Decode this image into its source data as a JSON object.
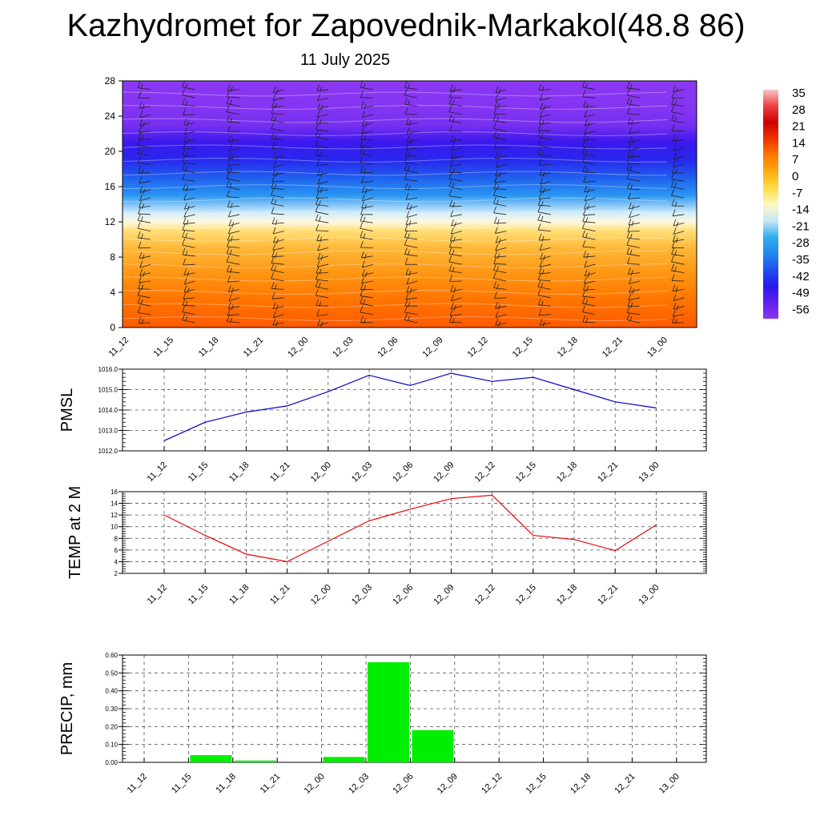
{
  "title": "Kazhydromet for Zapovednik-Markakol(48.8 86)",
  "subtitle": "11 July 2025",
  "chart_data": [
    {
      "type": "heatmap",
      "name": "upper-air temperature cross-section",
      "y_ticks": [
        "0",
        "4",
        "8",
        "12",
        "16",
        "20",
        "24",
        "28"
      ],
      "ylim": [
        0,
        28
      ],
      "x_ticks": [
        "11_12",
        "11_15",
        "11_18",
        "11_21",
        "12_00",
        "12_03",
        "12_06",
        "12_09",
        "12_12",
        "12_15",
        "12_18",
        "12_21",
        "13_00"
      ],
      "colorbar_labels": [
        "35",
        "28",
        "21",
        "14",
        "7",
        "0",
        "-7",
        "-14",
        "-21",
        "-28",
        "-35",
        "-42",
        "-49",
        "-56"
      ],
      "colorbar_stops": [
        "#f7c8c8",
        "#ee4040",
        "#cc0000",
        "#ee3300",
        "#ff7700",
        "#ffaa10",
        "#ffdd44",
        "#fff8c0",
        "#c8e8f8",
        "#30b0ee",
        "#2288ee",
        "#2050ee",
        "#2818ee",
        "#6020ee",
        "#8c34f2"
      ],
      "field_stops": [
        "#ff5a00",
        "#ff7400",
        "#ff9412",
        "#ffb838",
        "#ffdf78",
        "#fff8e0",
        "#d2ecfa",
        "#2a96f2",
        "#2060ee",
        "#2828ee",
        "#3a18ee",
        "#7830f0",
        "#8434f2",
        "#8c38f4"
      ],
      "field_levels": [
        0,
        3,
        6,
        9,
        11,
        12,
        13,
        15,
        17,
        19,
        21,
        23,
        25,
        28
      ],
      "wind_barbs": true
    },
    {
      "type": "line",
      "ylabel": "PMSL",
      "x": [
        "11_12",
        "11_15",
        "11_18",
        "11_21",
        "12_00",
        "12_03",
        "12_06",
        "12_09",
        "12_12",
        "12_15",
        "12_18",
        "12_21",
        "13_00"
      ],
      "values": [
        1012.5,
        1013.4,
        1013.9,
        1014.2,
        1014.9,
        1015.7,
        1015.2,
        1015.8,
        1015.4,
        1015.6,
        1015.0,
        1014.4,
        1014.1
      ],
      "y_ticks": [
        "1012.0",
        "1013.0",
        "1014.0",
        "1015.0",
        "1016.0"
      ],
      "ylim": [
        1012,
        1016
      ],
      "color": "#0000cc",
      "grid": true
    },
    {
      "type": "line",
      "ylabel": "TEMP at 2 M",
      "x": [
        "11_12",
        "11_15",
        "11_18",
        "11_21",
        "12_00",
        "12_03",
        "12_06",
        "12_09",
        "12_12",
        "12_15",
        "12_18",
        "12_21",
        "13_00"
      ],
      "values": [
        12.0,
        8.5,
        5.3,
        4.0,
        7.5,
        11.0,
        13.0,
        14.8,
        15.4,
        8.5,
        7.8,
        5.9,
        10.3
      ],
      "y_ticks": [
        "2",
        "4",
        "6",
        "8",
        "10",
        "12",
        "14",
        "16"
      ],
      "ylim": [
        2,
        16
      ],
      "color": "#ee0000",
      "grid": true
    },
    {
      "type": "bar",
      "ylabel": "PRECIP, mm",
      "categories": [
        "11_12",
        "11_15",
        "11_18",
        "11_21",
        "12_00",
        "12_03",
        "12_06",
        "12_09",
        "12_12",
        "12_15",
        "12_18",
        "12_21",
        "13_00"
      ],
      "values": [
        0,
        0.04,
        0.01,
        0,
        0.03,
        0.56,
        0.18,
        0,
        0,
        0,
        0,
        0,
        0
      ],
      "y_ticks": [
        "0.00",
        "0.10",
        "0.20",
        "0.30",
        "0.40",
        "0.50",
        "0.60"
      ],
      "ylim": [
        0,
        0.6
      ],
      "color": "#00ee00",
      "grid": true
    }
  ]
}
